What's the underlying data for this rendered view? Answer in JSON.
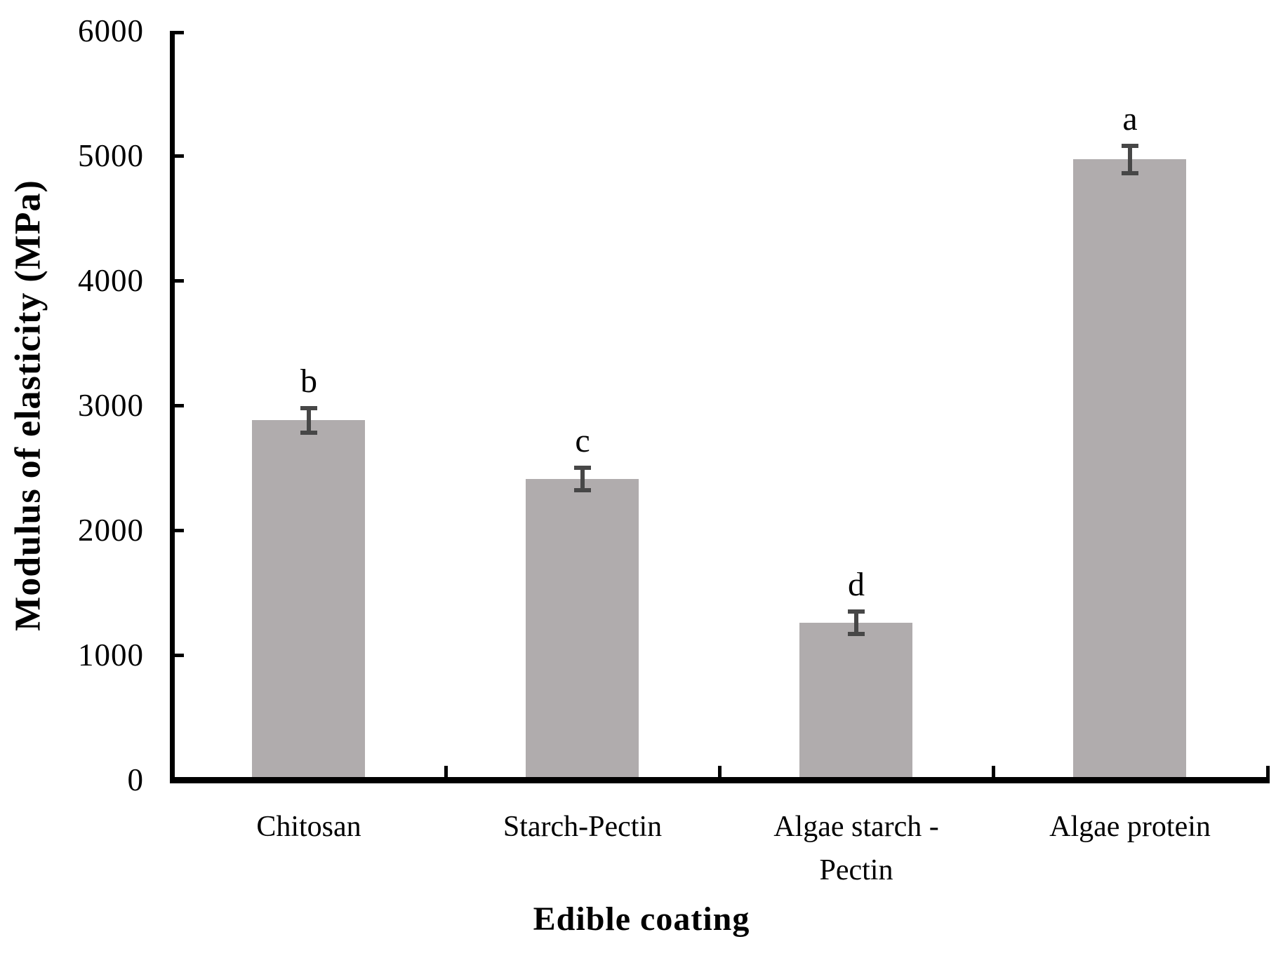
{
  "chart_data": {
    "type": "bar",
    "title": "",
    "xlabel": "Edible coating",
    "ylabel": "Modulus of elasticity (MPa)",
    "categories": [
      "Chitosan",
      "Starch-Pectin",
      "Algae starch - Pectin",
      "Algae protein"
    ],
    "category_lines": [
      [
        "Chitosan"
      ],
      [
        "Starch-Pectin"
      ],
      [
        "Algae starch -",
        "Pectin"
      ],
      [
        "Algae protein"
      ]
    ],
    "values": [
      2880,
      2410,
      1260,
      4970
    ],
    "error_bars": [
      100,
      90,
      90,
      110
    ],
    "sig_letters": [
      "b",
      "c",
      "d",
      "a"
    ],
    "yticks": [
      0,
      1000,
      2000,
      3000,
      4000,
      5000,
      6000
    ],
    "ylim": [
      0,
      6000
    ],
    "grid": false,
    "legend": false,
    "bar_color": "#b0acad",
    "error_bar_color": "#474747",
    "axis_color": "#000000",
    "text_color": "#000000"
  }
}
